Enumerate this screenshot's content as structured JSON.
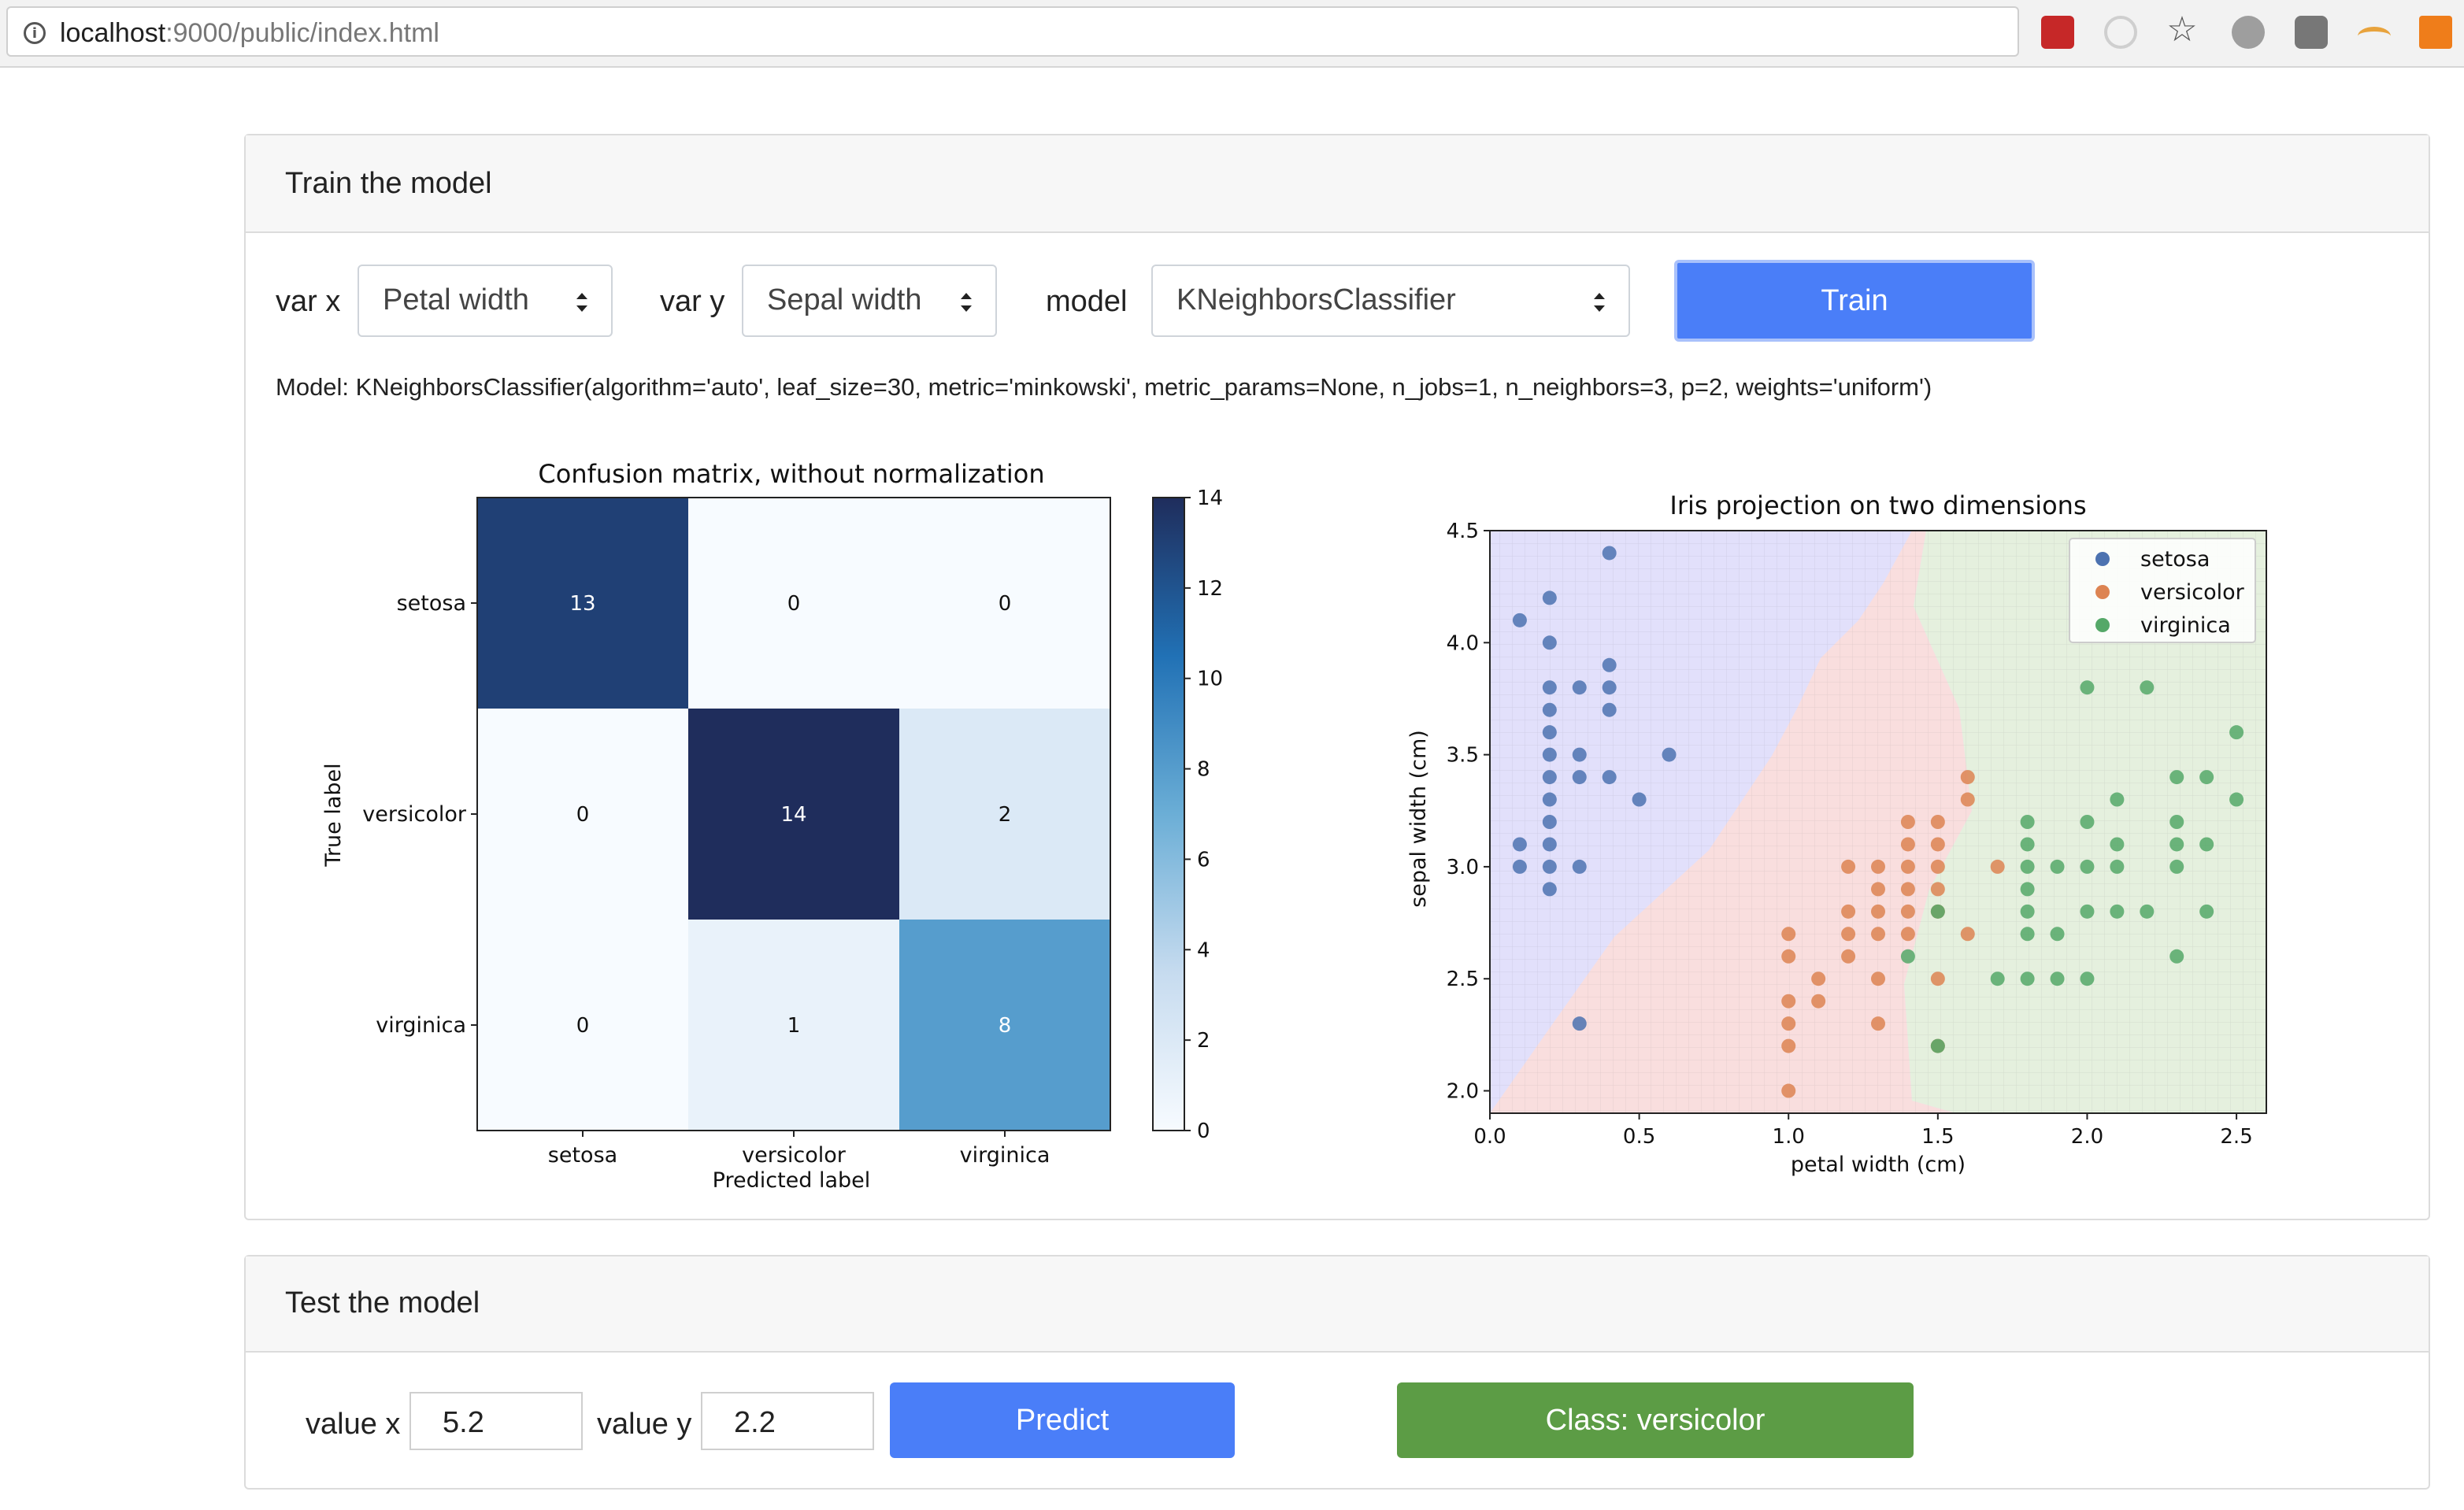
{
  "browser": {
    "url_host": "localhost",
    "url_rest": ":9000/public/index.html"
  },
  "train": {
    "title": "Train the model",
    "var_x_label": "var x",
    "var_x_value": "Petal width",
    "var_y_label": "var y",
    "var_y_value": "Sepal width",
    "model_label": "model",
    "model_value": "KNeighborsClassifier",
    "train_button": "Train",
    "model_description": "Model: KNeighborsClassifier(algorithm='auto', leaf_size=30, metric='minkowski', metric_params=None, n_jobs=1, n_neighbors=3, p=2, weights='uniform')"
  },
  "test": {
    "title": "Test the model",
    "value_x_label": "value x",
    "value_x": "5.2",
    "value_y_label": "value y",
    "value_y": "2.2",
    "predict_button": "Predict",
    "result": "Class: versicolor"
  },
  "colors": {
    "primary": "#4a7ef8",
    "success": "#5c9c45",
    "setosa": "#4c72b0",
    "versicolor": "#dd8452",
    "virginica": "#55a868"
  },
  "chart_data": [
    {
      "type": "heatmap",
      "title": "Confusion matrix, without normalization",
      "xlabel": "Predicted label",
      "ylabel": "True label",
      "categories": [
        "setosa",
        "versicolor",
        "virginica"
      ],
      "values": [
        [
          13,
          0,
          0
        ],
        [
          0,
          14,
          2
        ],
        [
          0,
          1,
          8
        ]
      ],
      "colorbar_range": [
        0,
        14
      ],
      "colorbar_ticks": [
        "0",
        "2",
        "4",
        "6",
        "8",
        "10",
        "12",
        "14"
      ]
    },
    {
      "type": "scatter",
      "title": "Iris projection on two dimensions",
      "xlabel": "petal width (cm)",
      "ylabel": "sepal width (cm)",
      "xlim": [
        0.0,
        2.6
      ],
      "ylim": [
        1.9,
        4.5
      ],
      "xticks": [
        "0.0",
        "0.5",
        "1.0",
        "1.5",
        "2.0",
        "2.5"
      ],
      "yticks": [
        "2.0",
        "2.5",
        "3.0",
        "3.5",
        "4.0",
        "4.5"
      ],
      "legend_position": "top-right",
      "grid": true,
      "series": [
        {
          "name": "setosa",
          "points": [
            [
              0.1,
              4.1
            ],
            [
              0.2,
              4.2
            ],
            [
              0.4,
              4.4
            ],
            [
              0.2,
              4.0
            ],
            [
              0.2,
              3.8
            ],
            [
              0.3,
              3.8
            ],
            [
              0.4,
              3.8
            ],
            [
              0.4,
              3.9
            ],
            [
              0.4,
              3.7
            ],
            [
              0.2,
              3.7
            ],
            [
              0.2,
              3.6
            ],
            [
              0.2,
              3.5
            ],
            [
              0.3,
              3.5
            ],
            [
              0.2,
              3.4
            ],
            [
              0.3,
              3.4
            ],
            [
              0.4,
              3.4
            ],
            [
              0.6,
              3.5
            ],
            [
              0.5,
              3.3
            ],
            [
              0.2,
              3.3
            ],
            [
              0.2,
              3.2
            ],
            [
              0.1,
              3.1
            ],
            [
              0.2,
              3.1
            ],
            [
              0.1,
              3.0
            ],
            [
              0.2,
              3.0
            ],
            [
              0.3,
              3.0
            ],
            [
              0.2,
              2.9
            ],
            [
              0.3,
              2.3
            ]
          ]
        },
        {
          "name": "versicolor",
          "points": [
            [
              1.6,
              3.4
            ],
            [
              1.5,
              3.1
            ],
            [
              1.4,
              3.2
            ],
            [
              1.5,
              3.2
            ],
            [
              1.6,
              3.3
            ],
            [
              1.4,
              3.1
            ],
            [
              1.5,
              3.0
            ],
            [
              1.4,
              3.0
            ],
            [
              1.3,
              3.0
            ],
            [
              1.2,
              3.0
            ],
            [
              1.7,
              3.0
            ],
            [
              1.0,
              2.7
            ],
            [
              1.3,
              2.9
            ],
            [
              1.4,
              2.9
            ],
            [
              1.5,
              2.9
            ],
            [
              1.3,
              2.8
            ],
            [
              1.2,
              2.8
            ],
            [
              1.4,
              2.8
            ],
            [
              1.5,
              2.8
            ],
            [
              1.6,
              2.7
            ],
            [
              1.3,
              2.7
            ],
            [
              1.2,
              2.7
            ],
            [
              1.4,
              2.7
            ],
            [
              1.0,
              2.6
            ],
            [
              1.2,
              2.6
            ],
            [
              1.1,
              2.5
            ],
            [
              1.3,
              2.5
            ],
            [
              1.5,
              2.5
            ],
            [
              1.0,
              2.4
            ],
            [
              1.1,
              2.4
            ],
            [
              1.0,
              2.3
            ],
            [
              1.3,
              2.3
            ],
            [
              1.0,
              2.2
            ],
            [
              1.5,
              2.2
            ],
            [
              1.0,
              2.0
            ]
          ]
        },
        {
          "name": "virginica",
          "points": [
            [
              2.0,
              3.8
            ],
            [
              2.2,
              3.8
            ],
            [
              2.5,
              3.6
            ],
            [
              2.3,
              3.4
            ],
            [
              2.4,
              3.4
            ],
            [
              2.1,
              3.3
            ],
            [
              2.5,
              3.3
            ],
            [
              1.8,
              3.2
            ],
            [
              2.0,
              3.2
            ],
            [
              2.3,
              3.2
            ],
            [
              1.8,
              3.1
            ],
            [
              2.1,
              3.1
            ],
            [
              2.3,
              3.1
            ],
            [
              2.4,
              3.1
            ],
            [
              1.8,
              3.0
            ],
            [
              1.9,
              3.0
            ],
            [
              2.0,
              3.0
            ],
            [
              2.1,
              3.0
            ],
            [
              2.3,
              3.0
            ],
            [
              1.8,
              2.9
            ],
            [
              1.5,
              2.8
            ],
            [
              1.8,
              2.8
            ],
            [
              2.0,
              2.8
            ],
            [
              2.1,
              2.8
            ],
            [
              2.2,
              2.8
            ],
            [
              2.4,
              2.8
            ],
            [
              1.8,
              2.7
            ],
            [
              1.9,
              2.7
            ],
            [
              1.4,
              2.6
            ],
            [
              2.3,
              2.6
            ],
            [
              1.7,
              2.5
            ],
            [
              1.8,
              2.5
            ],
            [
              1.9,
              2.5
            ],
            [
              2.0,
              2.5
            ],
            [
              1.5,
              2.2
            ]
          ]
        }
      ]
    }
  ]
}
